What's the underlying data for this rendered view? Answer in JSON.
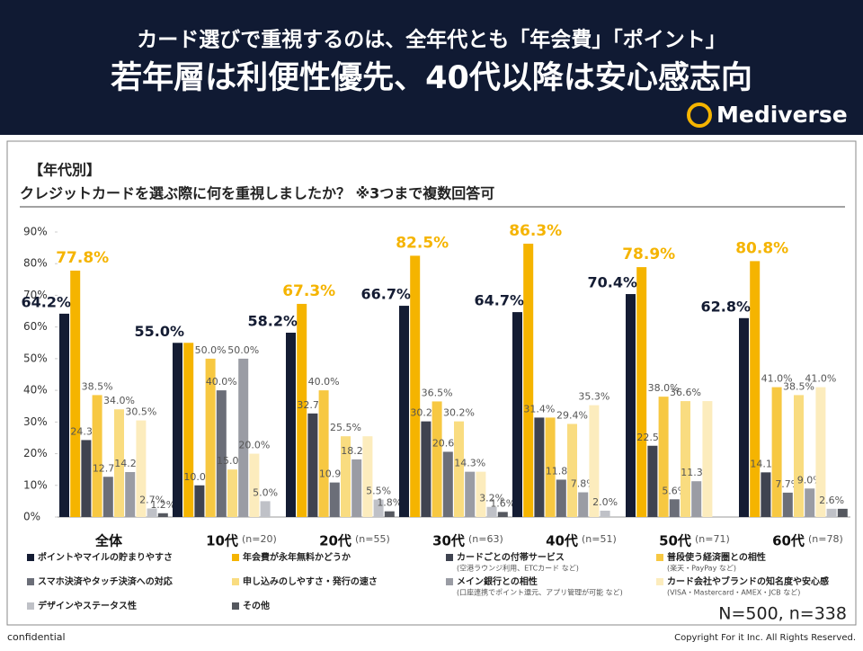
{
  "header": {
    "title_line1": "カード選びで重視するのは、全年代とも「年会費」「ポイント」",
    "title_line2": "若年層は利便性優先、40代以降は安心感志向",
    "logo": "Mediverse"
  },
  "panel": {
    "section": "【年代別】",
    "question": "クレジットカードを選ぶ際に何を重視しましたか？ ※3つまで複数回答可",
    "sample": "N=500, n=338"
  },
  "footer": {
    "left": "confidential",
    "right": "Copyright For it Inc. All Rights Reserved."
  },
  "chart_data": {
    "type": "bar",
    "categories": [
      "全体",
      "10代",
      "20代",
      "30代",
      "40代",
      "50代",
      "60代"
    ],
    "category_notes": [
      null,
      "(n=20)",
      "(n=55)",
      "(n=63)",
      "(n=51)",
      "(n=71)",
      "(n=78)"
    ],
    "ylim": [
      0,
      90
    ],
    "yticks": [
      {
        "value": 0,
        "label": "0%"
      },
      {
        "value": 10,
        "label": "10%"
      },
      {
        "value": 20,
        "label": "20%"
      },
      {
        "value": 30,
        "label": "30%"
      },
      {
        "value": 40,
        "label": "40%"
      },
      {
        "value": 50,
        "label": "50%"
      },
      {
        "value": 60,
        "label": "60%"
      },
      {
        "value": 70,
        "label": "70%"
      },
      {
        "value": 80,
        "label": "80%"
      },
      {
        "value": 90,
        "label": "90%"
      }
    ],
    "series": [
      {
        "name": "ポイントやマイルの貯まりやすさ",
        "color": "#141c33",
        "values": [
          64.2,
          55.0,
          58.2,
          66.7,
          64.7,
          70.4,
          62.8
        ],
        "value_labels": [
          "64.2%",
          "55.0%",
          "58.2%",
          "66.7%",
          "64.7%",
          "70.4%",
          "62.8%"
        ]
      },
      {
        "name": "年会費が永年無料かどうか",
        "color": "#f5b400",
        "values": [
          77.8,
          55.0,
          67.3,
          82.5,
          86.3,
          78.9,
          80.8
        ],
        "value_labels": [
          "77.8%",
          null,
          "67.3%",
          "82.5%",
          "86.3%",
          "78.9%",
          "80.8%"
        ]
      },
      {
        "name": "カードごとの付帯サービス",
        "note": "(空港ラウンジ利用、ETCカード など)",
        "color": "#3f4350",
        "values": [
          24.3,
          10.0,
          32.7,
          30.2,
          31.4,
          22.5,
          14.1
        ],
        "value_labels": [
          "24.3%",
          "10.0%",
          "32.7%",
          "30.2%",
          "31.4%",
          "22.5%",
          "14.1%"
        ]
      },
      {
        "name": "普段使う経済圏との相性",
        "note": "(楽天・PayPay など)",
        "color": "#f7c842",
        "values": [
          38.5,
          50.0,
          40.0,
          36.5,
          31.4,
          38.0,
          41.0
        ],
        "value_labels": [
          "38.5%",
          "50.0%",
          "40.0%",
          "36.5%",
          null,
          "38.0%",
          "41.0%"
        ]
      },
      {
        "name": "スマホ決済やタッチ決済への対応",
        "color": "#6b6e78",
        "values": [
          12.7,
          40.0,
          10.9,
          20.6,
          11.8,
          5.6,
          7.7
        ],
        "value_labels": [
          "12.7%",
          "40.0%",
          "10.9%",
          "20.6%",
          "11.8%",
          "5.6%",
          "7.7%"
        ]
      },
      {
        "name": "申し込みのしやすさ・発行の速さ",
        "color": "#f9dc80",
        "values": [
          34.0,
          15.0,
          25.5,
          30.2,
          29.4,
          36.6,
          38.5
        ],
        "value_labels": [
          "34.0%",
          "15.0%",
          "25.5%",
          "30.2%",
          "29.4%",
          "36.6%",
          "38.5%"
        ]
      },
      {
        "name": "メイン銀行との相性",
        "note": "(口座連携でポイント還元、アプリ管理が可能 など)",
        "color": "#9a9ca4",
        "values": [
          14.2,
          50.0,
          18.2,
          14.3,
          7.8,
          11.3,
          9.0
        ],
        "value_labels": [
          "14.2%",
          "50.0%",
          "18.2%",
          "14.3%",
          "7.8%",
          "11.3%",
          "9.0%"
        ]
      },
      {
        "name": "カード会社やブランドの知名度や安心感",
        "note": "(VISA・Mastercard・AMEX・JCB など)",
        "color": "#fcecbd",
        "values": [
          30.5,
          20.0,
          25.5,
          14.3,
          35.3,
          36.6,
          41.0
        ],
        "value_labels": [
          "30.5%",
          "20.0%",
          null,
          null,
          "35.3%",
          null,
          "41.0%"
        ]
      },
      {
        "name": "デザインやステータス性",
        "color": "#bfc1c7",
        "values": [
          2.7,
          5.0,
          5.5,
          3.2,
          2.0,
          0,
          2.6
        ],
        "value_labels": [
          "2.7%",
          "5.0%",
          "5.5%",
          "3.2%",
          "2.0%",
          null,
          "2.6%"
        ]
      },
      {
        "name": "その他",
        "color": "#55585f",
        "values": [
          1.2,
          0,
          1.8,
          1.6,
          0,
          0,
          2.6
        ],
        "value_labels": [
          "1.2%",
          null,
          "1.8%",
          "1.6%",
          null,
          null,
          null
        ]
      }
    ]
  }
}
